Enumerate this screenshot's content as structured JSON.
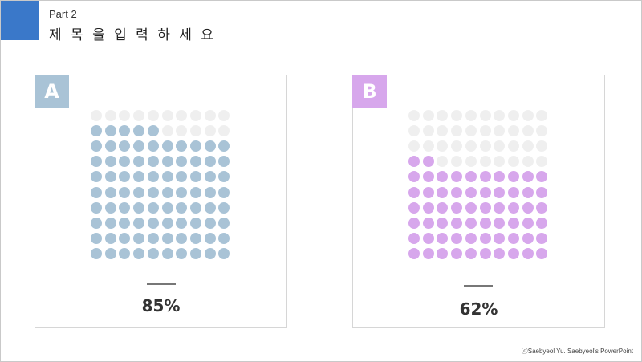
{
  "header": {
    "part_label": "Part 2",
    "title": "제 목 을   입 력 하 세 요",
    "accent_color": "#3a78c9"
  },
  "cards": [
    {
      "badge": "A",
      "percent_label": "85%",
      "value": 85,
      "total": 100,
      "fill_color": "#a9c3d6",
      "empty_color": "#efefef"
    },
    {
      "badge": "B",
      "percent_label": "62%",
      "value": 62,
      "total": 100,
      "fill_color": "#d7a7ec",
      "empty_color": "#efefef"
    }
  ],
  "footer": {
    "credit": "ⓒSaebyeol Yu. Saebyeol's PowerPoint"
  }
}
